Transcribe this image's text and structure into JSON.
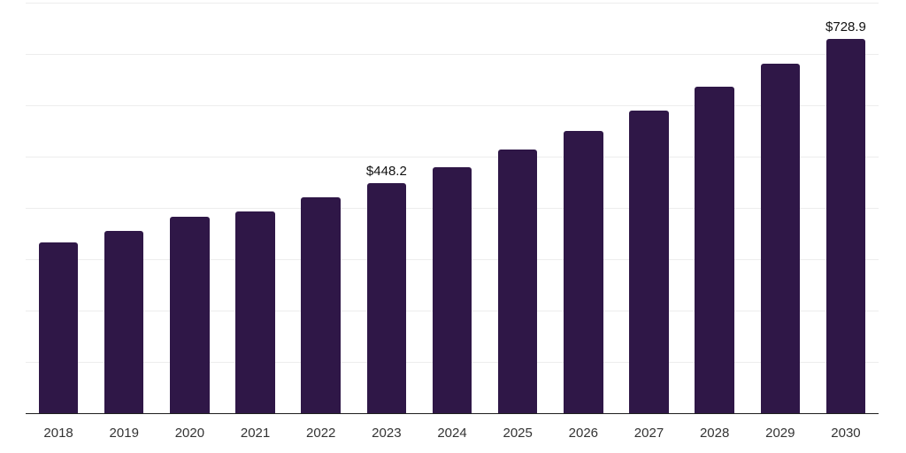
{
  "chart_data": {
    "type": "bar",
    "title": "",
    "xlabel": "",
    "ylabel": "",
    "ylim": [
      0,
      800
    ],
    "gridline_step": 100,
    "grid": true,
    "legend": false,
    "colors": {
      "bar": "#2f1747",
      "gridline": "#ededed",
      "axis_line": "#1f1f1f",
      "tick_label": "#333333",
      "value_label": "#111111",
      "background": "#ffffff"
    },
    "categories": [
      "2018",
      "2019",
      "2020",
      "2021",
      "2022",
      "2023",
      "2024",
      "2025",
      "2026",
      "2027",
      "2028",
      "2029",
      "2030"
    ],
    "points": [
      {
        "year": "2018",
        "value": 332
      },
      {
        "year": "2019",
        "value": 355
      },
      {
        "year": "2020",
        "value": 383.5
      },
      {
        "year": "2021",
        "value": 392.5
      },
      {
        "year": "2022",
        "value": 421
      },
      {
        "year": "2023",
        "value": 448.2,
        "label": "$448.2"
      },
      {
        "year": "2024",
        "value": 480
      },
      {
        "year": "2025",
        "value": 514
      },
      {
        "year": "2026",
        "value": 550
      },
      {
        "year": "2027",
        "value": 590.5
      },
      {
        "year": "2028",
        "value": 636
      },
      {
        "year": "2029",
        "value": 681.5
      },
      {
        "year": "2030",
        "value": 728.9,
        "label": "$728.9"
      }
    ]
  }
}
